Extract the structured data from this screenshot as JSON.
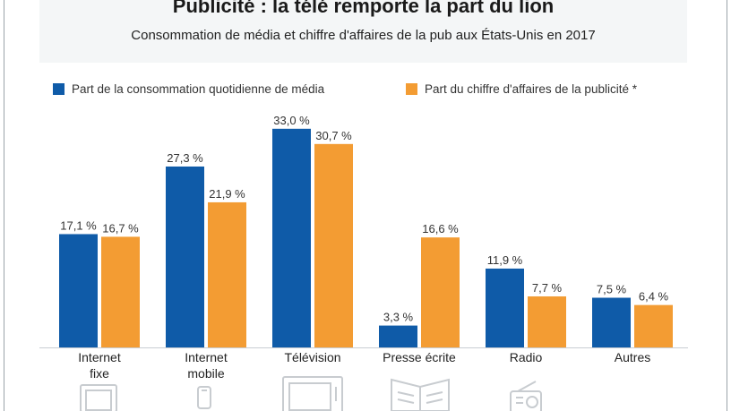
{
  "header": {
    "title": "Publicité : la télé remporte la part du lion",
    "subtitle": "Consommation de média et chiffre d'affaires de la pub aux États-Unis en 2017"
  },
  "colors": {
    "series_1": "#0f5ba8",
    "series_2": "#f39c33",
    "axis": "#c9ced2",
    "icon": "#c8ccd0"
  },
  "icons": [
    "desktop-monitor-icon",
    "smartphone-icon",
    "television-icon",
    "newspaper-icon",
    "radio-icon"
  ],
  "chart_data": {
    "type": "bar",
    "title": "Publicité : la télé remporte la part du lion",
    "subtitle": "Consommation de média et chiffre d'affaires de la pub aux États-Unis en 2017",
    "categories": [
      "Internet fixe",
      "Internet mobile",
      "Télévision",
      "Presse écrite",
      "Radio",
      "Autres"
    ],
    "category_lines": [
      [
        "Internet",
        "fixe"
      ],
      [
        "Internet",
        "mobile"
      ],
      [
        "Télévision"
      ],
      [
        "Presse écrite"
      ],
      [
        "Radio"
      ],
      [
        "Autres"
      ]
    ],
    "series": [
      {
        "name": "Part de la consommation quotidienne de média",
        "values": [
          17.1,
          27.3,
          33.0,
          3.3,
          11.9,
          7.5
        ],
        "labels": [
          "17,1 %",
          "27,3 %",
          "33,0 %",
          "3,3 %",
          "11,9 %",
          "7,5 %"
        ]
      },
      {
        "name": "Part du chiffre d'affaires de la publicité *",
        "values": [
          16.7,
          21.9,
          30.7,
          16.6,
          7.7,
          6.4
        ],
        "labels": [
          "16,7 %",
          "21,9 %",
          "30,7 %",
          "16,6 %",
          "7,7 %",
          "6,4 %"
        ]
      }
    ],
    "xlabel": "",
    "ylabel": "",
    "ylim": [
      0,
      33
    ],
    "grid": false,
    "legend_position": "top"
  }
}
